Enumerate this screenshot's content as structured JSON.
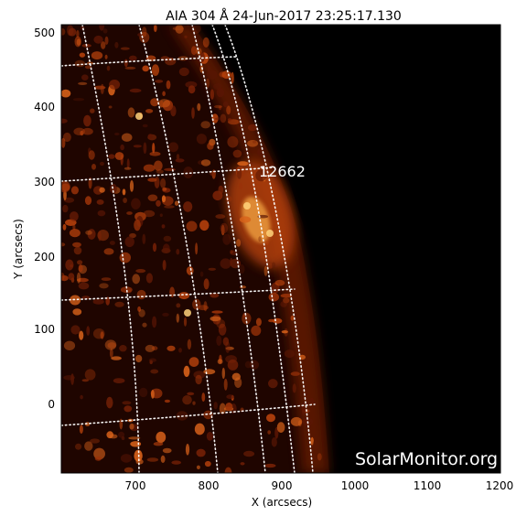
{
  "title": "AIA 304 Å 24-Jun-2017 23:25:17.130",
  "x_axis": {
    "label": "X (arcsecs)",
    "ticks": [
      "700",
      "800",
      "900",
      "1000",
      "1100",
      "1200"
    ]
  },
  "y_axis": {
    "label": "Y (arcsecs)",
    "ticks": [
      "500",
      "400",
      "300",
      "200",
      "100",
      "0"
    ]
  },
  "region_label": "12662",
  "watermark": "SolarMonitor.org",
  "colors": {
    "space": "#000000",
    "disk_dark": "#1a0400",
    "emission": "#c84a10",
    "bright": "#ffd27a",
    "grid": "#ffffff"
  }
}
